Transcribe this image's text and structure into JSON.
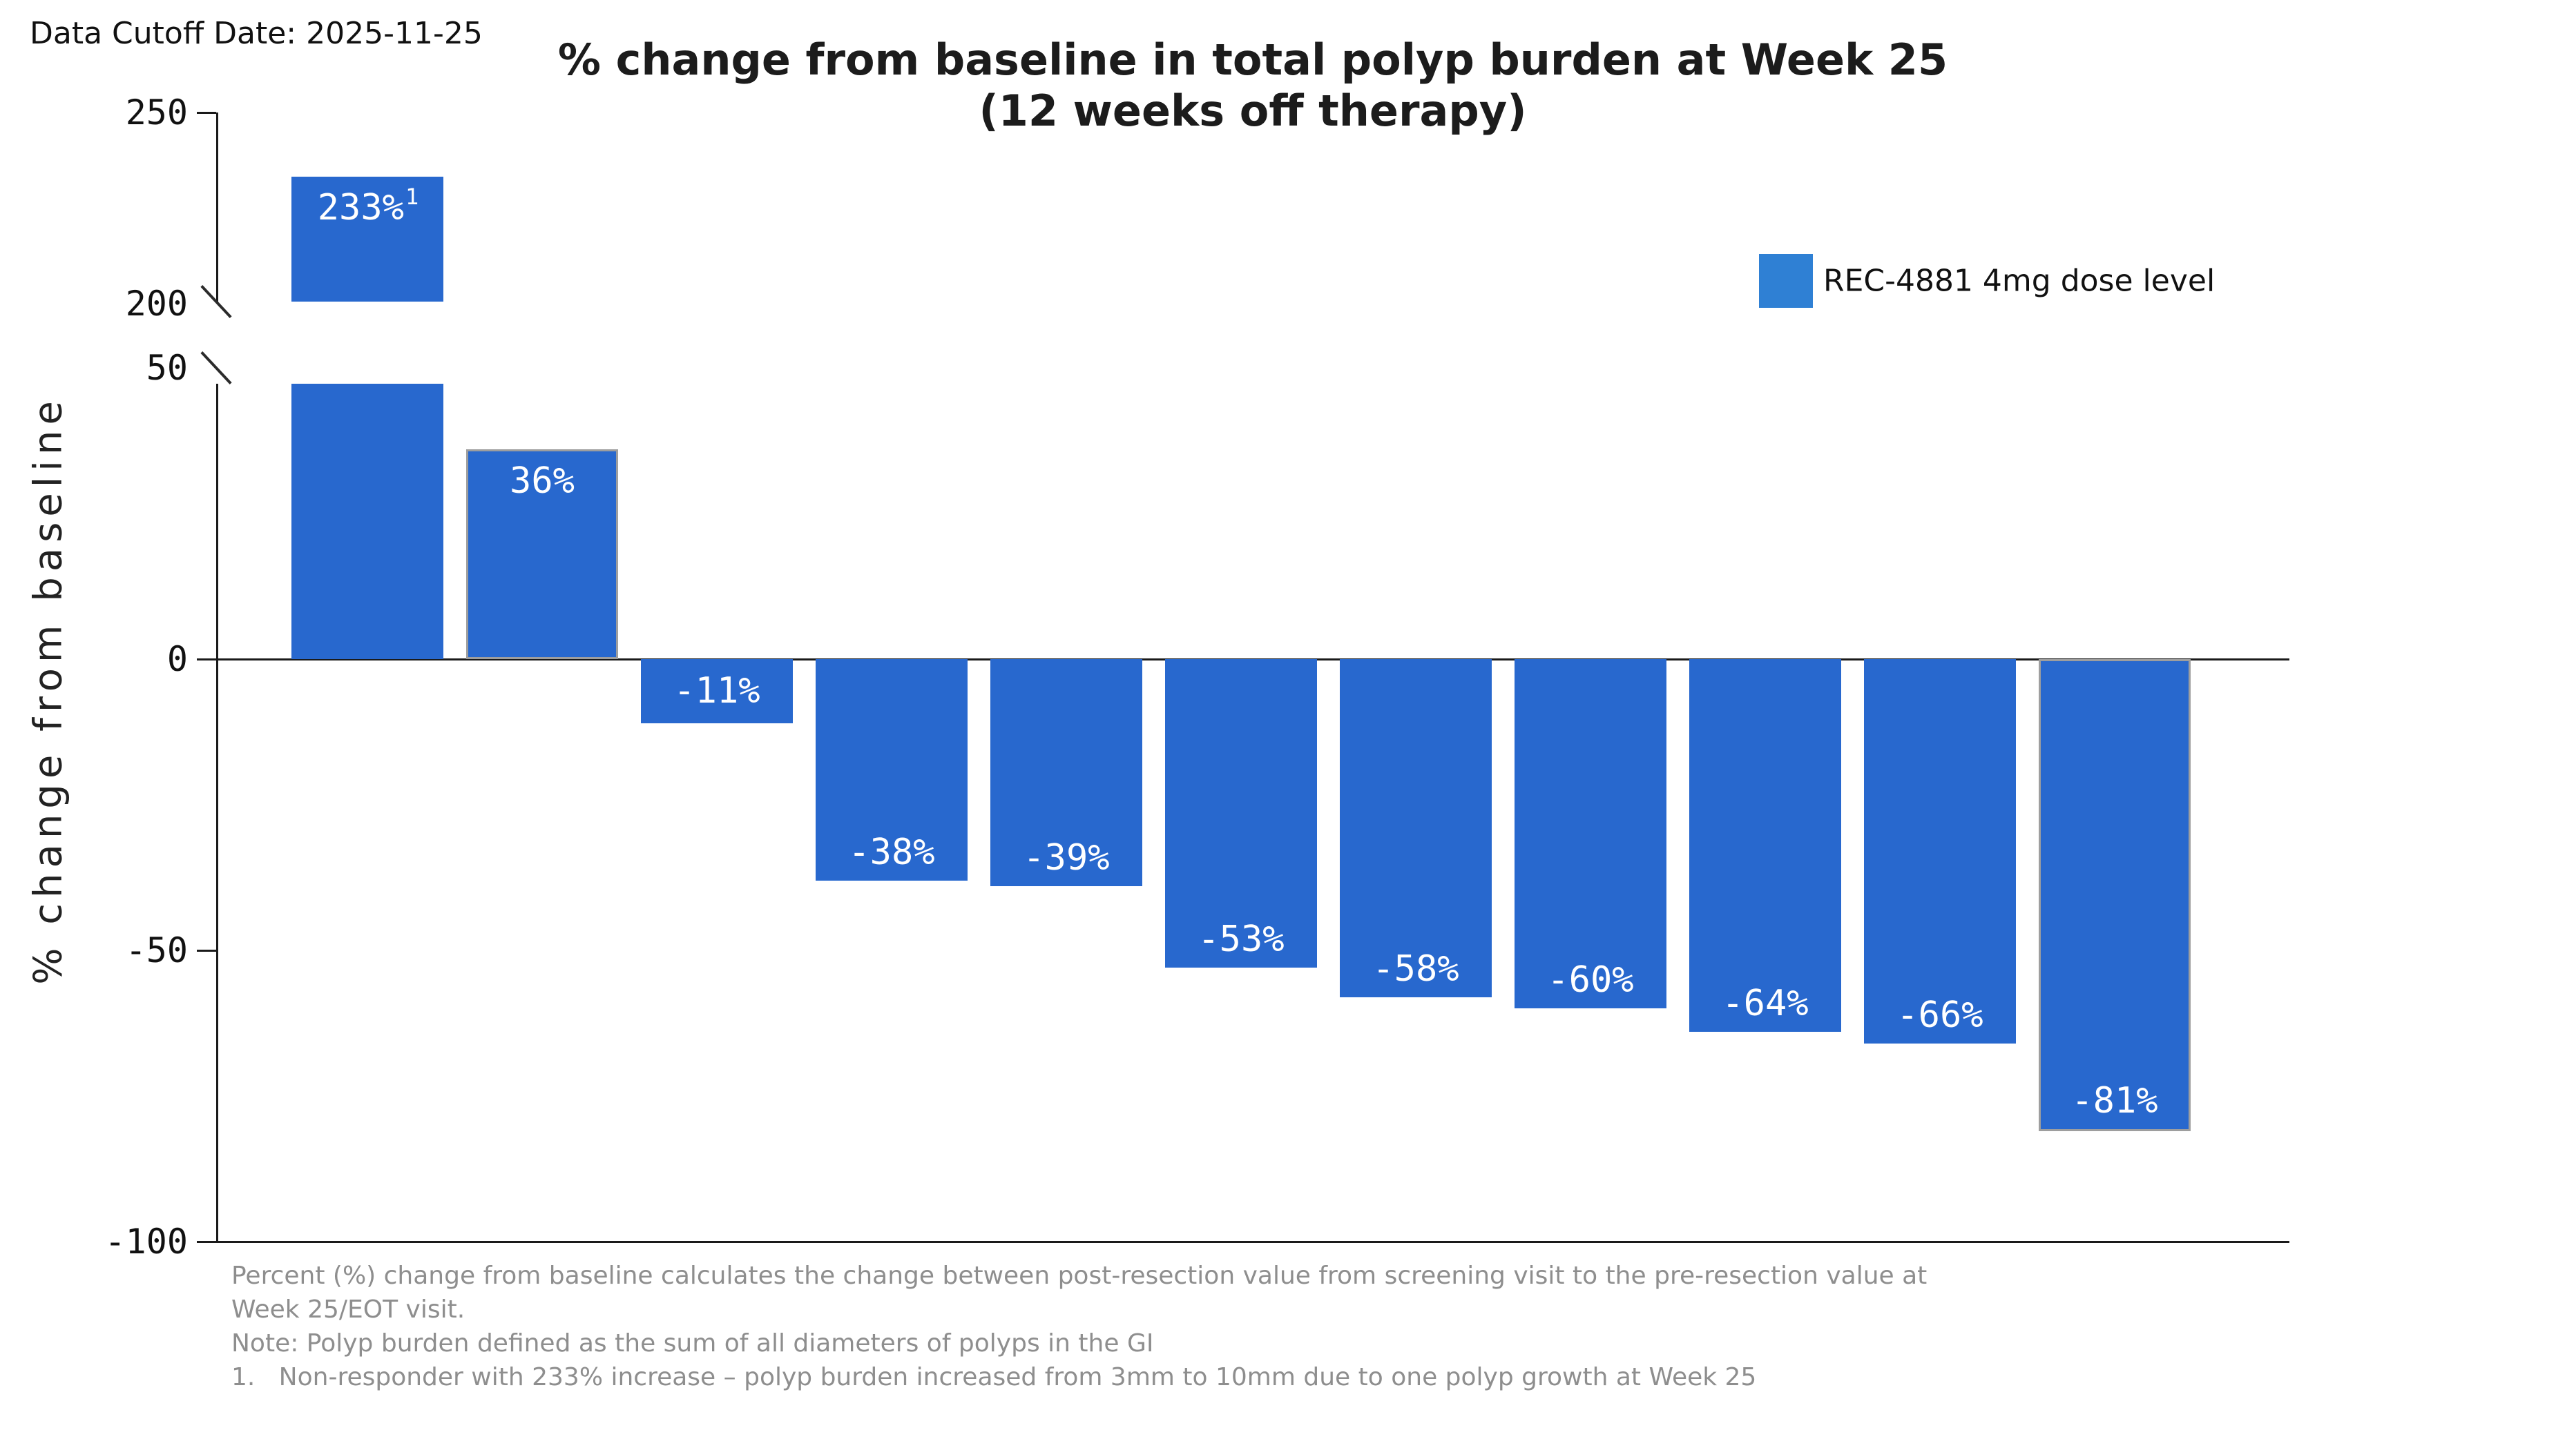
{
  "header": {
    "data_cutoff": "Data Cutoff Date: 2025-11-25"
  },
  "chart_data": {
    "type": "bar",
    "title_line1": "% change from baseline in total polyp burden at Week 25",
    "title_line2": "(12 weeks off therapy)",
    "ylabel": "% change from baseline",
    "legend": {
      "label": "REC-4881 4mg dose level",
      "swatch_color": "#2f80d4"
    },
    "bar_color": "#2868ce",
    "outline_color": "#9e9e9e",
    "axis_color": "#1a1a1a",
    "axis": {
      "broken": true,
      "upper_ticks": [
        {
          "label": "250",
          "value": 250
        },
        {
          "label": "200",
          "value": 200
        }
      ],
      "lower_ticks": [
        {
          "label": "50",
          "value": 50
        },
        {
          "label": "0",
          "value": 0
        },
        {
          "label": "-50",
          "value": -50
        },
        {
          "label": "-100",
          "value": -100
        }
      ],
      "upper_range": [
        200,
        250
      ],
      "lower_range": [
        -100,
        50
      ]
    },
    "bars": [
      {
        "label": "233%",
        "value": 233,
        "sup": "1",
        "outlined": false
      },
      {
        "label": "36%",
        "value": 36,
        "sup": "",
        "outlined": true
      },
      {
        "label": "-11%",
        "value": -11,
        "sup": "",
        "outlined": false
      },
      {
        "label": "-38%",
        "value": -38,
        "sup": "",
        "outlined": false
      },
      {
        "label": "-39%",
        "value": -39,
        "sup": "",
        "outlined": false
      },
      {
        "label": "-53%",
        "value": -53,
        "sup": "",
        "outlined": false
      },
      {
        "label": "-58%",
        "value": -58,
        "sup": "",
        "outlined": false
      },
      {
        "label": "-60%",
        "value": -60,
        "sup": "",
        "outlined": false
      },
      {
        "label": "-64%",
        "value": -64,
        "sup": "",
        "outlined": false
      },
      {
        "label": "-66%",
        "value": -66,
        "sup": "",
        "outlined": false
      },
      {
        "label": "-81%",
        "value": -81,
        "sup": "",
        "outlined": true
      }
    ]
  },
  "footnotes": {
    "lines": [
      "Percent (%) change from baseline calculates the change between post-resection value from screening visit to the pre-resection value at",
      "Week 25/EOT visit.",
      "Note: Polyp burden defined as the sum of all diameters of polyps in the GI",
      "1.   Non-responder with 233% increase – polyp burden increased from 3mm to 10mm due to one polyp growth at Week 25"
    ]
  }
}
